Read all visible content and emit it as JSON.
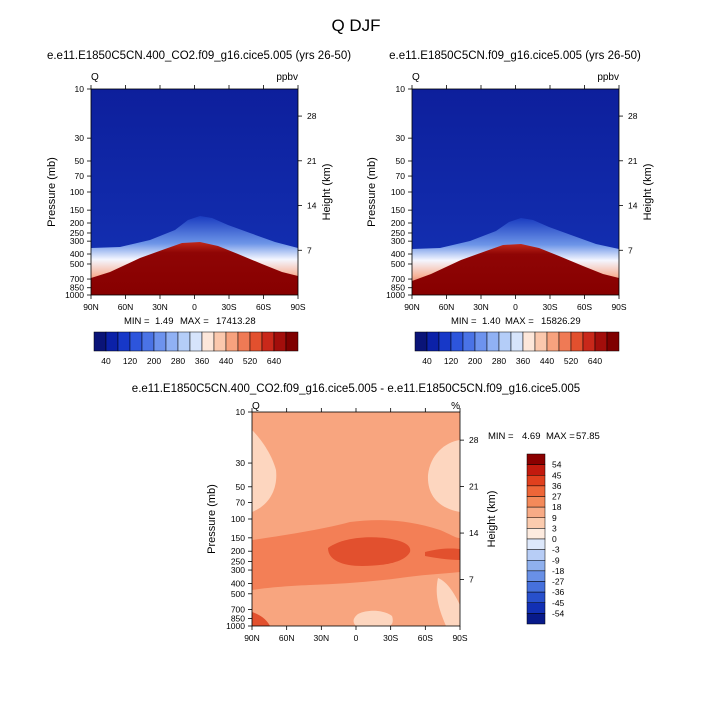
{
  "page": {
    "title": "Q DJF"
  },
  "colors": {
    "ice": "#2a3fb0",
    "deep_blue": "#0a1d9e",
    "dark_red": "#8b0000",
    "diff_base": "#f6a27a",
    "diff_light": "#fdd7c0",
    "diff_mid": "#f08050",
    "diff_dark": "#e2502d"
  },
  "chart_data": [
    {
      "type": "heatmap",
      "id": "panel1",
      "title": "e.e11.E1850C5CN.400_CO2.f09_g16.cice5.005 (yrs 26-50)",
      "variable_label": "Q",
      "units_label": "ppbv",
      "ylabel": "Pressure (mb)",
      "ylabel_right": "Height (km)",
      "x_ticks": [
        "90N",
        "60N",
        "30N",
        "0",
        "30S",
        "60S",
        "90S"
      ],
      "y_ticks": [
        "10",
        "30",
        "50",
        "70",
        "100",
        "150",
        "200",
        "250",
        "300",
        "400",
        "500",
        "700",
        "850",
        "1000"
      ],
      "height_ticks": [
        "28",
        "21",
        "14",
        "7"
      ],
      "min_label": "MIN =",
      "min": "1.49",
      "max_label": "MAX =",
      "max": "17413.28",
      "colorbar_labels": [
        "40",
        "120",
        "200",
        "280",
        "360",
        "440",
        "520",
        "640"
      ]
    },
    {
      "type": "heatmap",
      "id": "panel2",
      "title": "e.e11.E1850C5CN.f09_g16.cice5.005 (yrs 26-50)",
      "variable_label": "Q",
      "units_label": "ppbv",
      "ylabel": "Pressure (mb)",
      "ylabel_right": "Height (km)",
      "x_ticks": [
        "90N",
        "60N",
        "30N",
        "0",
        "30S",
        "60S",
        "90S"
      ],
      "y_ticks": [
        "10",
        "30",
        "50",
        "70",
        "100",
        "150",
        "200",
        "250",
        "300",
        "400",
        "500",
        "700",
        "850",
        "1000"
      ],
      "height_ticks": [
        "28",
        "21",
        "14",
        "7"
      ],
      "min_label": "MIN =",
      "min": "1.40",
      "max_label": "MAX =",
      "max": "15826.29",
      "colorbar_labels": [
        "40",
        "120",
        "200",
        "280",
        "360",
        "440",
        "520",
        "640"
      ]
    },
    {
      "type": "heatmap",
      "id": "diff",
      "title": "e.e11.E1850C5CN.400_CO2.f09_g16.cice5.005 - e.e11.E1850C5CN.f09_g16.cice5.005",
      "variable_label": "Q",
      "units_label": "%",
      "ylabel": "Pressure (mb)",
      "ylabel_right": "Height (km)",
      "x_ticks": [
        "90N",
        "60N",
        "30N",
        "0",
        "30S",
        "60S",
        "90S"
      ],
      "y_ticks": [
        "10",
        "30",
        "50",
        "70",
        "100",
        "150",
        "200",
        "250",
        "300",
        "400",
        "500",
        "700",
        "850",
        "1000"
      ],
      "height_ticks": [
        "28",
        "21",
        "14",
        "7"
      ],
      "min_label": "MIN =",
      "min": "4.69",
      "max_label": "MAX =",
      "max": "57.85",
      "colorbar_labels": [
        "54",
        "45",
        "36",
        "27",
        "18",
        "9",
        "3",
        "0",
        "-3",
        "-9",
        "-18",
        "-27",
        "-36",
        "-45",
        "-54"
      ]
    }
  ]
}
